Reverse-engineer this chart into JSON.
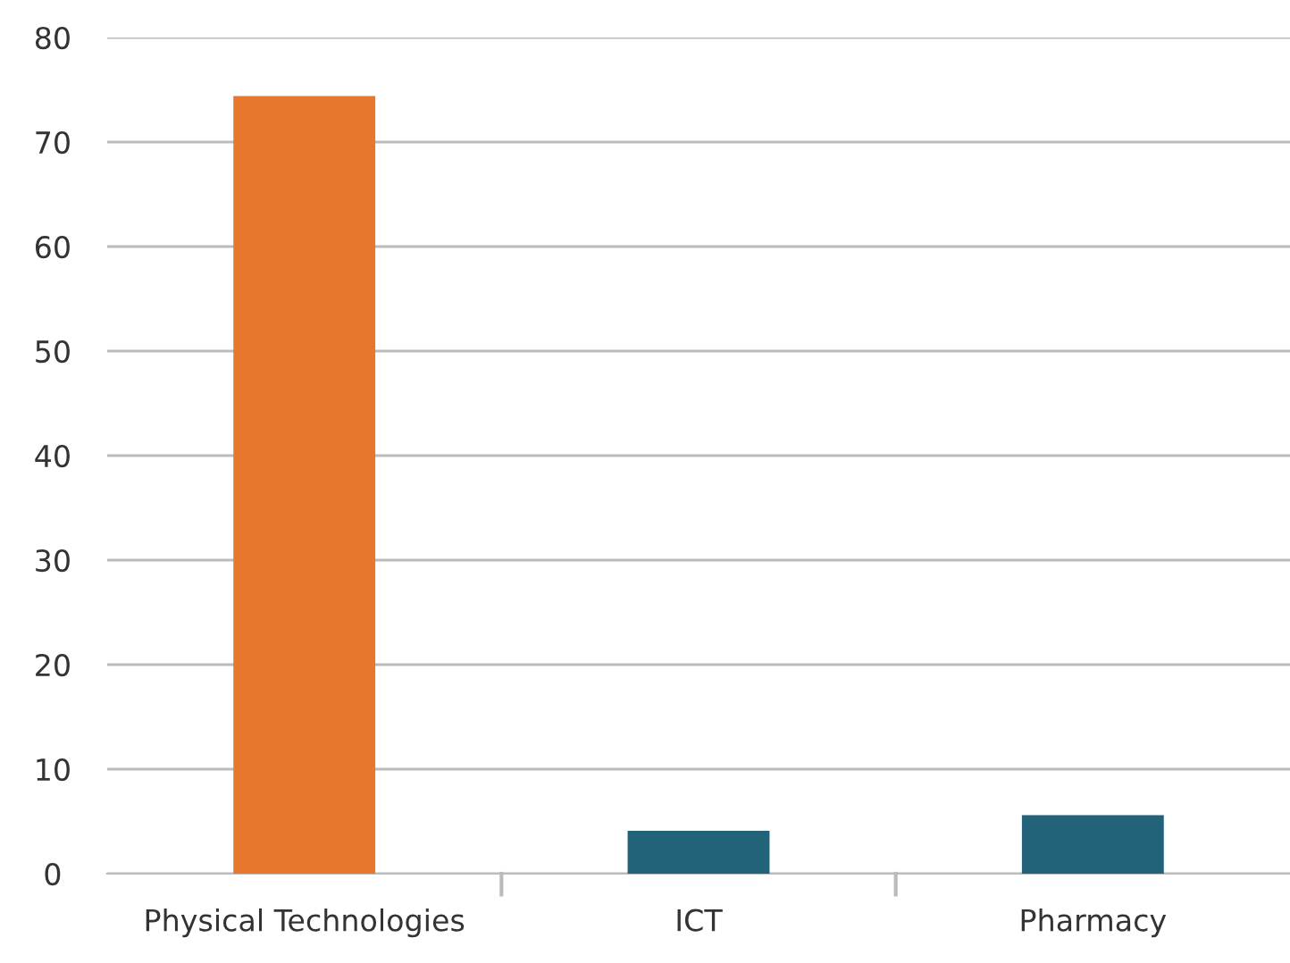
{
  "chart_data": {
    "type": "bar",
    "categories": [
      "Physical Technologies",
      "ICT",
      "Pharmacy"
    ],
    "values": [
      74.4,
      4.1,
      5.6
    ],
    "colors": [
      "#e8772e",
      "#22637a",
      "#22637a"
    ],
    "ylim": [
      0,
      80
    ],
    "yticks": [
      0,
      10,
      20,
      30,
      40,
      50,
      60,
      70,
      80
    ],
    "grid": "y",
    "legend": false
  }
}
